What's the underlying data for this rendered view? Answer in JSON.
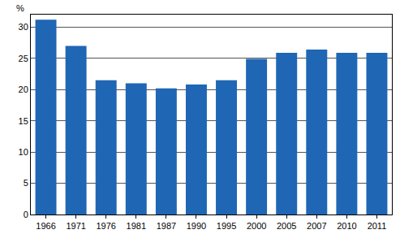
{
  "chart_data": {
    "type": "bar",
    "ylabel": "%",
    "categories": [
      "1966",
      "1971",
      "1976",
      "1981",
      "1987",
      "1990",
      "1995",
      "2000",
      "2005",
      "2007",
      "2010",
      "2011"
    ],
    "values": [
      31.2,
      27.0,
      21.5,
      21.0,
      20.2,
      20.8,
      21.5,
      24.9,
      25.9,
      26.4,
      25.9,
      25.9
    ],
    "color": "#1f66b5",
    "ylim": [
      0,
      32
    ],
    "yticks": [
      0,
      5,
      10,
      15,
      20,
      25,
      30
    ],
    "grid": true
  }
}
